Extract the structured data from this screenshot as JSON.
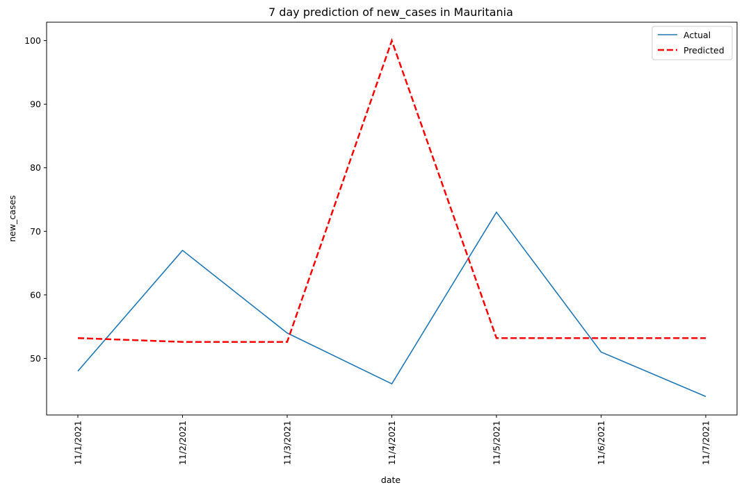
{
  "chart_data": {
    "type": "line",
    "title": "7 day prediction of new_cases in Mauritania",
    "xlabel": "date",
    "ylabel": "new_cases",
    "categories": [
      "11/1/2021",
      "11/2/2021",
      "11/3/2021",
      "11/4/2021",
      "11/5/2021",
      "11/6/2021",
      "11/7/2021"
    ],
    "yticks": [
      "50",
      "60",
      "70",
      "80",
      "90",
      "100"
    ],
    "ylim": [
      41.1,
      102.9
    ],
    "grid": false,
    "legend_position": "top-right",
    "series": [
      {
        "name": "Actual",
        "values": [
          48,
          67,
          54,
          46,
          73,
          51,
          44
        ],
        "color": "#1f77b4",
        "style": "solid"
      },
      {
        "name": "Predicted",
        "values": [
          53.2,
          52.6,
          52.6,
          100,
          53.2,
          53.2,
          53.2
        ],
        "color": "#ff0000",
        "style": "dashed"
      }
    ]
  }
}
